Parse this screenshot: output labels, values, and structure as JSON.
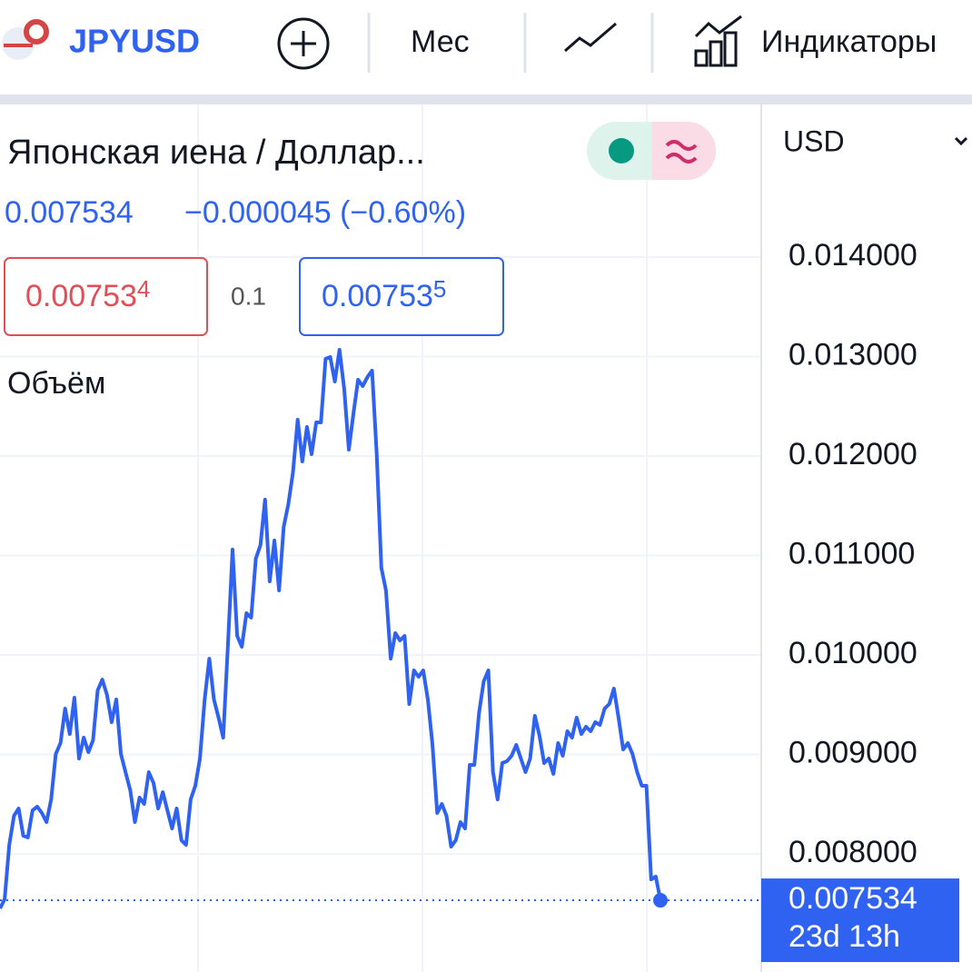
{
  "header": {
    "symbol": "JPYUSD",
    "interval": "Мес",
    "indicators": "Индикаторы"
  },
  "legend": {
    "name": "Японская иена / Доллар...",
    "change": "−0.000045 (−0.60%)",
    "bid": {
      "main": "0.00753",
      "pip": "4"
    },
    "spread": "0.1",
    "ask": {
      "main": "0.00753",
      "pip": "5"
    },
    "volume": "Объём"
  },
  "chart_data": {
    "type": "line",
    "currency": "USD",
    "color": "#2f62f0",
    "grid": true,
    "ylim": [
      0.006813,
      0.015534
    ],
    "yticks": [
      {
        "value": 0.008,
        "label": "0.008000"
      },
      {
        "value": 0.009,
        "label": "0.009000"
      },
      {
        "value": 0.01,
        "label": "0.010000"
      },
      {
        "value": 0.011,
        "label": "0.011000"
      },
      {
        "value": 0.012,
        "label": "0.012000"
      },
      {
        "value": 0.013,
        "label": "0.013000"
      },
      {
        "value": 0.014,
        "label": "0.014000"
      }
    ],
    "last_price": 0.007534,
    "countdown": "23d 13h",
    "values": [
      0.007452,
      0.007544,
      0.008091,
      0.008384,
      0.008457,
      0.008183,
      0.008165,
      0.008438,
      0.008475,
      0.008411,
      0.00832,
      0.008548,
      0.009005,
      0.009114,
      0.009461,
      0.009205,
      0.009571,
      0.008959,
      0.009169,
      0.009023,
      0.009142,
      0.009644,
      0.009753,
      0.009598,
      0.009324,
      0.009553,
      0.009005,
      0.008822,
      0.008639,
      0.00832,
      0.008566,
      0.008502,
      0.008822,
      0.008712,
      0.008457,
      0.008621,
      0.008438,
      0.008256,
      0.008457,
      0.008137,
      0.008091,
      0.008548,
      0.008685,
      0.008959,
      0.009553,
      0.009963,
      0.009553,
      0.00937,
      0.009169,
      0.0101,
      0.011059,
      0.010192,
      0.010082,
      0.01042,
      0.010375,
      0.010968,
      0.011105,
      0.011562,
      0.01074,
      0.011151,
      0.010648,
      0.011288,
      0.011516,
      0.011836,
      0.012365,
      0.011945,
      0.012292,
      0.012018,
      0.012338,
      0.012338,
      0.012977,
      0.012995,
      0.012749,
      0.013068,
      0.012676,
      0.012064,
      0.012429,
      0.012767,
      0.012703,
      0.012795,
      0.012858,
      0.012018,
      0.010877,
      0.010648,
      0.009963,
      0.010219,
      0.010146,
      0.010192,
      0.009507,
      0.009845,
      0.009781,
      0.009845,
      0.009553,
      0.009096,
      0.008411,
      0.008502,
      0.008384,
      0.008073,
      0.008137,
      0.00832,
      0.008256,
      0.008895,
      0.008895,
      0.009416,
      0.009735,
      0.009845,
      0.008822,
      0.008548,
      0.008913,
      0.008932,
      0.008986,
      0.009096,
      0.008959,
      0.008822,
      0.008959,
      0.009388,
      0.009187,
      0.008913,
      0.008959,
      0.008804,
      0.009114,
      0.008986,
      0.009233,
      0.009169,
      0.00937,
      0.009205,
      0.009279,
      0.009233,
      0.009324,
      0.009297,
      0.009461,
      0.009507,
      0.009662,
      0.00937,
      0.00905,
      0.009114,
      0.009005,
      0.008822,
      0.008685,
      0.008685,
      0.007744,
      0.007772,
      0.007534
    ]
  }
}
